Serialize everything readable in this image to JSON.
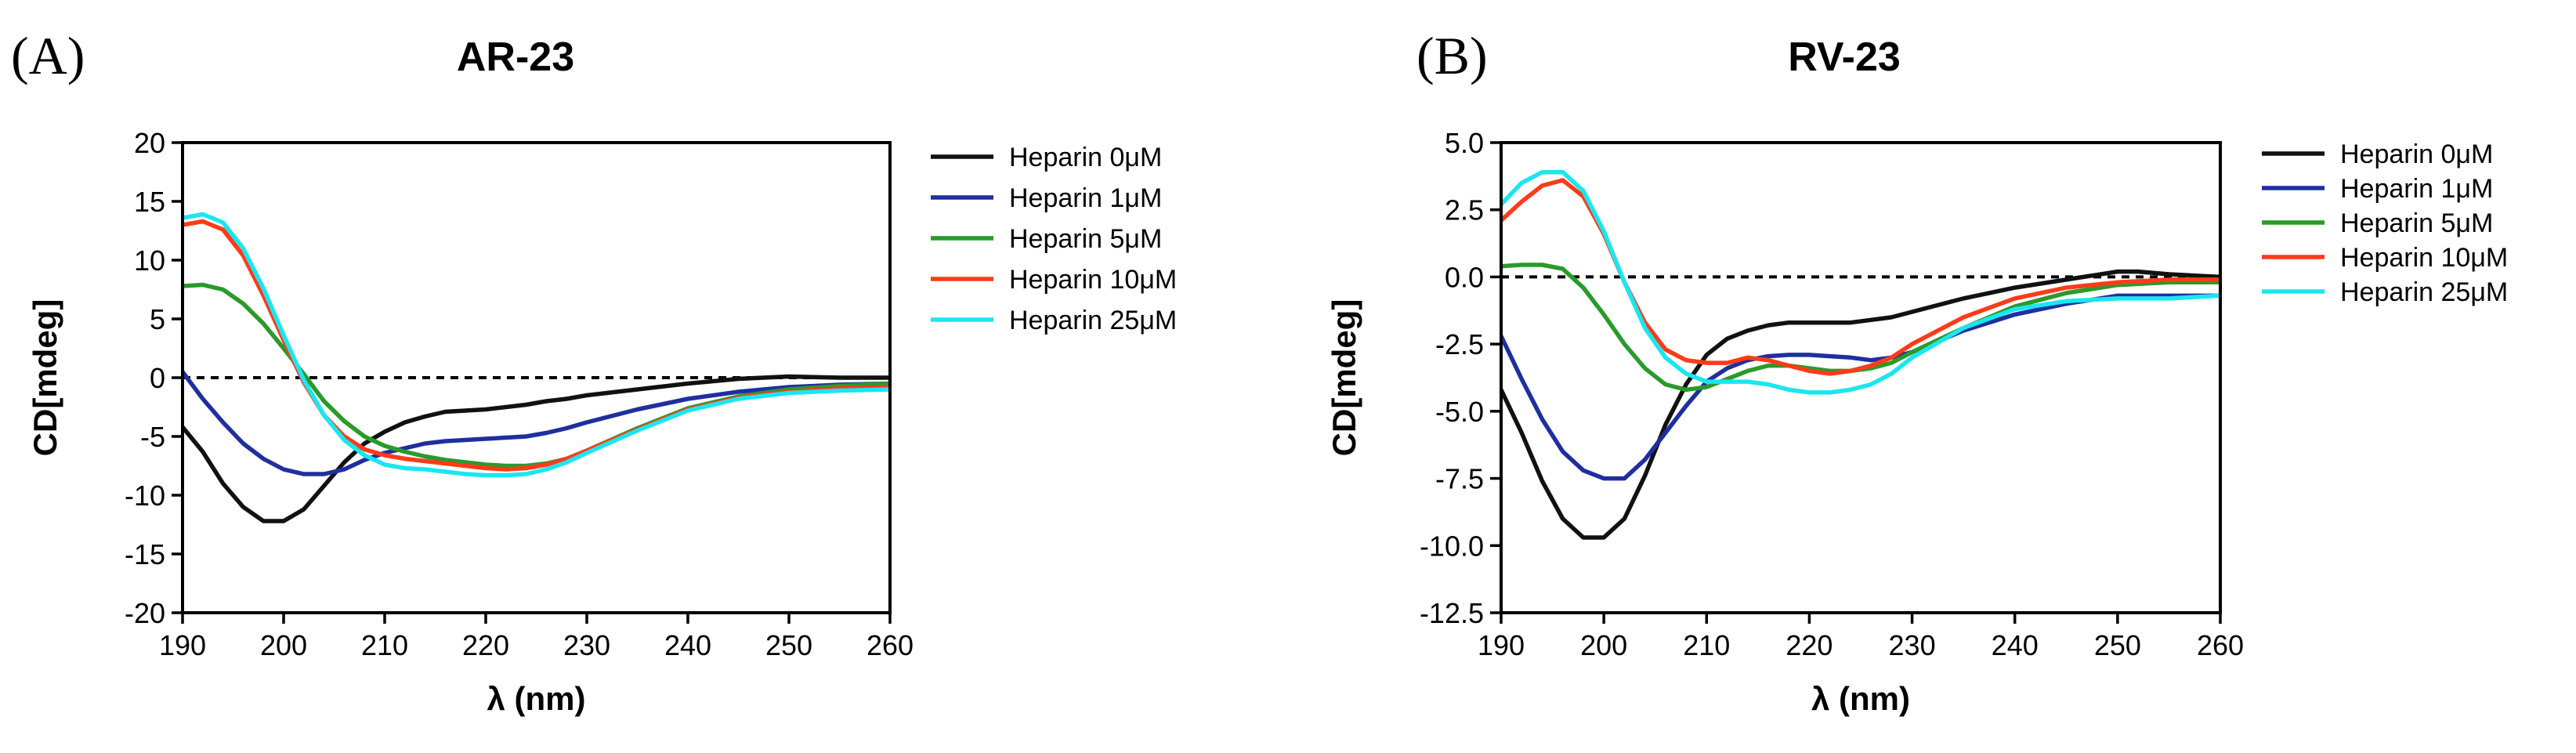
{
  "chart_data": [
    {
      "panel": "(A)",
      "type": "line",
      "title": "AR-23",
      "xlabel": "λ (nm)",
      "ylabel": "CD[mdeg]",
      "xlim": [
        190,
        260
      ],
      "ylim": [
        -20,
        20
      ],
      "xticks": [
        190,
        200,
        210,
        220,
        230,
        240,
        250,
        260
      ],
      "yticks": [
        -20,
        -15,
        -10,
        -5,
        0,
        5,
        10,
        15,
        20
      ],
      "ytick_labels": [
        "-20",
        "-15",
        "-10",
        "-5",
        "0",
        "5",
        "10",
        "15",
        "20"
      ],
      "reference_line": 0,
      "grid": false,
      "legend_position": "right",
      "series": [
        {
          "name": "Heparin 0μM",
          "color": "#111111",
          "x": [
            190,
            192,
            194,
            196,
            198,
            200,
            202,
            204,
            206,
            208,
            210,
            212,
            214,
            216,
            218,
            220,
            222,
            224,
            226,
            228,
            230,
            235,
            240,
            245,
            250,
            255,
            260
          ],
          "y": [
            -4.2,
            -6.3,
            -9,
            -11,
            -12.2,
            -12.2,
            -11.2,
            -9.2,
            -7.2,
            -5.6,
            -4.6,
            -3.8,
            -3.3,
            -2.9,
            -2.8,
            -2.7,
            -2.5,
            -2.3,
            -2.0,
            -1.8,
            -1.5,
            -1.0,
            -0.5,
            -0.1,
            0.1,
            0.0,
            0.0
          ]
        },
        {
          "name": "Heparin 1μM",
          "color": "#1f2fa0",
          "x": [
            190,
            192,
            194,
            196,
            198,
            200,
            202,
            204,
            206,
            208,
            210,
            212,
            214,
            216,
            218,
            220,
            222,
            224,
            226,
            228,
            230,
            235,
            240,
            245,
            250,
            255,
            260
          ],
          "y": [
            0.5,
            -1.8,
            -3.8,
            -5.6,
            -6.9,
            -7.8,
            -8.2,
            -8.2,
            -7.8,
            -7.0,
            -6.4,
            -6.0,
            -5.6,
            -5.4,
            -5.3,
            -5.2,
            -5.1,
            -5.0,
            -4.7,
            -4.3,
            -3.8,
            -2.7,
            -1.8,
            -1.2,
            -0.8,
            -0.6,
            -0.5
          ]
        },
        {
          "name": "Heparin 5μM",
          "color": "#2a9a2a",
          "x": [
            190,
            192,
            194,
            196,
            198,
            200,
            202,
            204,
            206,
            208,
            210,
            212,
            214,
            216,
            218,
            220,
            222,
            224,
            226,
            228,
            230,
            235,
            240,
            245,
            250,
            255,
            260
          ],
          "y": [
            7.8,
            7.9,
            7.5,
            6.3,
            4.6,
            2.5,
            0.3,
            -2.0,
            -3.7,
            -5.0,
            -5.8,
            -6.3,
            -6.7,
            -7.0,
            -7.2,
            -7.4,
            -7.5,
            -7.5,
            -7.3,
            -6.9,
            -6.2,
            -4.3,
            -2.6,
            -1.6,
            -1.0,
            -0.7,
            -0.5
          ]
        },
        {
          "name": "Heparin 10μM",
          "color": "#ff3b1a",
          "x": [
            190,
            192,
            194,
            196,
            198,
            200,
            202,
            204,
            206,
            208,
            210,
            212,
            214,
            216,
            218,
            220,
            222,
            224,
            226,
            228,
            230,
            235,
            240,
            245,
            250,
            255,
            260
          ],
          "y": [
            13.0,
            13.3,
            12.6,
            10.4,
            7.0,
            3.2,
            -0.4,
            -3.2,
            -5.0,
            -6.1,
            -6.6,
            -6.9,
            -7.1,
            -7.3,
            -7.5,
            -7.7,
            -7.8,
            -7.7,
            -7.4,
            -6.9,
            -6.2,
            -4.4,
            -2.7,
            -1.7,
            -1.2,
            -0.9,
            -0.8
          ]
        },
        {
          "name": "Heparin 25μM",
          "color": "#1ae6f0",
          "x": [
            190,
            192,
            194,
            196,
            198,
            200,
            202,
            204,
            206,
            208,
            210,
            212,
            214,
            216,
            218,
            220,
            222,
            224,
            226,
            228,
            230,
            235,
            240,
            245,
            250,
            255,
            260
          ],
          "y": [
            13.6,
            13.9,
            13.2,
            11.0,
            7.6,
            3.6,
            -0.2,
            -3.2,
            -5.3,
            -6.6,
            -7.4,
            -7.7,
            -7.8,
            -8.0,
            -8.2,
            -8.3,
            -8.3,
            -8.2,
            -7.8,
            -7.2,
            -6.4,
            -4.5,
            -2.8,
            -1.8,
            -1.3,
            -1.1,
            -1.0
          ]
        }
      ]
    },
    {
      "panel": "(B)",
      "type": "line",
      "title": "RV-23",
      "xlabel": "λ (nm)",
      "ylabel": "CD[mdeg]",
      "xlim": [
        190,
        260
      ],
      "ylim": [
        -12.5,
        5.0
      ],
      "xticks": [
        190,
        200,
        210,
        220,
        230,
        240,
        250,
        260
      ],
      "yticks": [
        -12.5,
        -10.0,
        -7.5,
        -5.0,
        -2.5,
        0.0,
        2.5,
        5.0
      ],
      "ytick_labels": [
        "-12.5",
        "-10.0",
        "-7.5",
        "-5.0",
        "-2.5",
        "0.0",
        "2.5",
        "5.0"
      ],
      "reference_line": 0,
      "grid": false,
      "legend_position": "right",
      "series": [
        {
          "name": "Heparin 0μM",
          "color": "#111111",
          "x": [
            190,
            192,
            194,
            196,
            198,
            200,
            202,
            204,
            206,
            208,
            210,
            212,
            214,
            216,
            218,
            220,
            222,
            224,
            226,
            228,
            230,
            235,
            240,
            245,
            250,
            252,
            255,
            260
          ],
          "y": [
            -4.2,
            -5.8,
            -7.6,
            -9.0,
            -9.7,
            -9.7,
            -9.0,
            -7.4,
            -5.5,
            -4.0,
            -2.9,
            -2.3,
            -2.0,
            -1.8,
            -1.7,
            -1.7,
            -1.7,
            -1.7,
            -1.6,
            -1.5,
            -1.3,
            -0.8,
            -0.4,
            -0.1,
            0.2,
            0.2,
            0.1,
            0.0
          ]
        },
        {
          "name": "Heparin 1μM",
          "color": "#1f2fa0",
          "x": [
            190,
            192,
            194,
            196,
            198,
            200,
            202,
            204,
            206,
            208,
            210,
            212,
            214,
            216,
            218,
            220,
            222,
            224,
            226,
            228,
            230,
            235,
            240,
            245,
            250,
            255,
            260
          ],
          "y": [
            -2.2,
            -3.8,
            -5.3,
            -6.5,
            -7.2,
            -7.5,
            -7.5,
            -6.8,
            -5.8,
            -4.8,
            -3.9,
            -3.4,
            -3.1,
            -2.95,
            -2.9,
            -2.9,
            -2.95,
            -3.0,
            -3.1,
            -3.0,
            -2.8,
            -2.0,
            -1.4,
            -1.0,
            -0.7,
            -0.7,
            -0.7
          ]
        },
        {
          "name": "Heparin 5μM",
          "color": "#2a9a2a",
          "x": [
            190,
            192,
            194,
            196,
            198,
            200,
            202,
            204,
            206,
            208,
            210,
            212,
            214,
            216,
            218,
            220,
            222,
            224,
            226,
            228,
            230,
            235,
            240,
            245,
            250,
            255,
            260
          ],
          "y": [
            0.4,
            0.45,
            0.45,
            0.3,
            -0.4,
            -1.4,
            -2.5,
            -3.4,
            -4.0,
            -4.2,
            -4.1,
            -3.8,
            -3.5,
            -3.3,
            -3.3,
            -3.4,
            -3.5,
            -3.5,
            -3.4,
            -3.2,
            -2.8,
            -1.9,
            -1.1,
            -0.6,
            -0.3,
            -0.2,
            -0.2
          ]
        },
        {
          "name": "Heparin 10μM",
          "color": "#ff3b1a",
          "x": [
            190,
            192,
            194,
            196,
            198,
            200,
            202,
            204,
            206,
            208,
            210,
            212,
            214,
            216,
            218,
            220,
            222,
            224,
            226,
            228,
            230,
            235,
            240,
            245,
            250,
            255,
            260
          ],
          "y": [
            2.1,
            2.8,
            3.4,
            3.6,
            3.0,
            1.6,
            -0.2,
            -1.7,
            -2.7,
            -3.1,
            -3.2,
            -3.2,
            -3.0,
            -3.1,
            -3.3,
            -3.5,
            -3.6,
            -3.5,
            -3.3,
            -3.0,
            -2.5,
            -1.5,
            -0.8,
            -0.4,
            -0.2,
            -0.1,
            -0.1
          ]
        },
        {
          "name": "Heparin 25μM",
          "color": "#1ae6f0",
          "x": [
            190,
            192,
            194,
            196,
            198,
            200,
            202,
            204,
            206,
            208,
            210,
            212,
            214,
            216,
            218,
            220,
            222,
            224,
            226,
            228,
            230,
            235,
            240,
            245,
            250,
            255,
            260
          ],
          "y": [
            2.7,
            3.5,
            3.9,
            3.9,
            3.2,
            1.7,
            -0.2,
            -1.9,
            -3.0,
            -3.6,
            -3.9,
            -3.9,
            -3.9,
            -4.0,
            -4.2,
            -4.3,
            -4.3,
            -4.2,
            -4.0,
            -3.6,
            -3.0,
            -1.9,
            -1.2,
            -0.9,
            -0.8,
            -0.8,
            -0.7
          ]
        }
      ]
    }
  ]
}
